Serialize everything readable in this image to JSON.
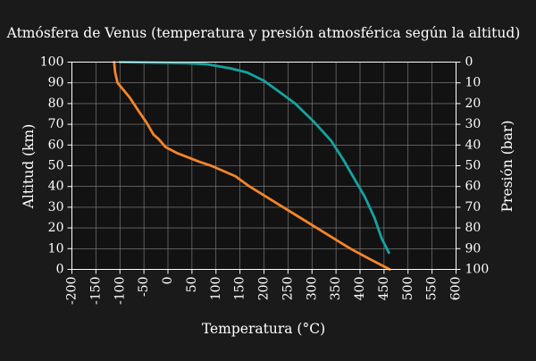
{
  "chart_data": {
    "type": "line",
    "title": "Atmósfera de Venus (temperatura y presión atmosférica según la altitud)",
    "xlabel": "Temperatura (°C)",
    "ylabel": "Altitud (km)",
    "y2label": "Presión (bar)",
    "xlim": [
      -200,
      600
    ],
    "ylim": [
      0,
      100
    ],
    "y2lim": [
      100,
      0
    ],
    "x_ticks": [
      "-200",
      "-150",
      "-100",
      "-50",
      "0",
      "50",
      "100",
      "150",
      "200",
      "250",
      "300",
      "350",
      "400",
      "450",
      "500",
      "550",
      "600"
    ],
    "y_ticks": [
      "0",
      "10",
      "20",
      "30",
      "40",
      "50",
      "60",
      "70",
      "80",
      "90",
      "100"
    ],
    "y2_ticks": [
      "100",
      "90",
      "80",
      "70",
      "60",
      "50",
      "40",
      "30",
      "20",
      "10",
      "0"
    ],
    "grid": true,
    "series": [
      {
        "name": "Temperatura",
        "color": "#f5852a",
        "axis": "bottom-left",
        "points": [
          [
            462,
            0
          ],
          [
            420,
            5
          ],
          [
            380,
            10
          ],
          [
            345,
            15
          ],
          [
            310,
            20
          ],
          [
            275,
            25
          ],
          [
            240,
            30
          ],
          [
            205,
            35
          ],
          [
            170,
            40
          ],
          [
            140,
            45
          ],
          [
            90,
            50
          ],
          [
            65,
            52
          ],
          [
            20,
            56
          ],
          [
            -5,
            59
          ],
          [
            -20,
            63
          ],
          [
            -30,
            65
          ],
          [
            -45,
            71
          ],
          [
            -60,
            76
          ],
          [
            -80,
            83
          ],
          [
            -105,
            90
          ],
          [
            -110,
            95
          ],
          [
            -112,
            100
          ]
        ]
      },
      {
        "name": "Presión",
        "color": "#16a3a0",
        "axis": "bottom-right",
        "points": [
          [
            460,
            92
          ],
          [
            445,
            85
          ],
          [
            430,
            75
          ],
          [
            410,
            65
          ],
          [
            385,
            55
          ],
          [
            365,
            47
          ],
          [
            340,
            38
          ],
          [
            305,
            29
          ],
          [
            265,
            20
          ],
          [
            230,
            14
          ],
          [
            200,
            9
          ],
          [
            165,
            5
          ],
          [
            130,
            3
          ],
          [
            80,
            1
          ],
          [
            40,
            0.5
          ],
          [
            -100,
            0
          ]
        ]
      }
    ]
  }
}
